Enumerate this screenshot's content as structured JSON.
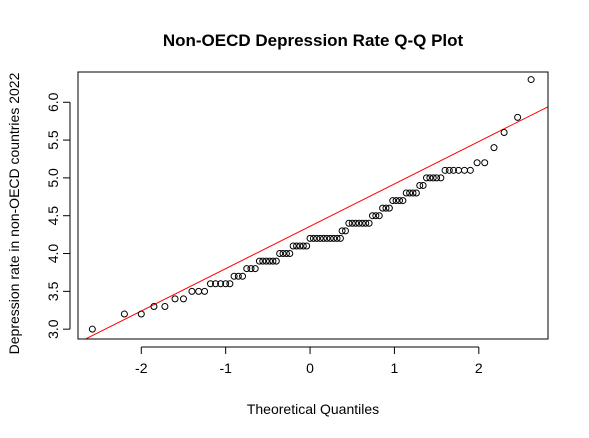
{
  "chart_data": {
    "type": "scatter",
    "subtype": "qq-plot",
    "title": "Non-OECD Depression Rate Q-Q Plot",
    "xlabel": "Theoretical Quantiles",
    "ylabel": "Depression rate in non-OECD countries 2022",
    "xlim": [
      -2.75,
      2.82
    ],
    "ylim": [
      2.87,
      6.4
    ],
    "xticks": [
      -2,
      -1,
      0,
      1,
      2
    ],
    "xtick_labels": [
      "-2",
      "-1",
      "0",
      "1",
      "2"
    ],
    "yticks": [
      3.0,
      3.5,
      4.0,
      4.5,
      5.0,
      5.5,
      6.0
    ],
    "ytick_labels": [
      "3.0",
      "3.5",
      "4.0",
      "4.5",
      "5.0",
      "5.5",
      "6.0"
    ],
    "grid": false,
    "point_color": "#000000",
    "line_color": "#ff0000",
    "reference_line": {
      "x": [
        -2.75,
        2.82
      ],
      "y": [
        2.82,
        5.94
      ]
    },
    "points": [
      [
        -2.58,
        3.0
      ],
      [
        -2.2,
        3.2
      ],
      [
        -2.0,
        3.2
      ],
      [
        -1.85,
        3.3
      ],
      [
        -1.72,
        3.3
      ],
      [
        -1.6,
        3.4
      ],
      [
        -1.5,
        3.4
      ],
      [
        -1.4,
        3.5
      ],
      [
        -1.32,
        3.5
      ],
      [
        -1.25,
        3.5
      ],
      [
        -1.18,
        3.6
      ],
      [
        -1.12,
        3.6
      ],
      [
        -1.06,
        3.6
      ],
      [
        -1.0,
        3.6
      ],
      [
        -0.95,
        3.6
      ],
      [
        -0.9,
        3.7
      ],
      [
        -0.85,
        3.7
      ],
      [
        -0.8,
        3.7
      ],
      [
        -0.75,
        3.8
      ],
      [
        -0.7,
        3.8
      ],
      [
        -0.65,
        3.8
      ],
      [
        -0.6,
        3.9
      ],
      [
        -0.56,
        3.9
      ],
      [
        -0.52,
        3.9
      ],
      [
        -0.48,
        3.9
      ],
      [
        -0.44,
        3.9
      ],
      [
        -0.4,
        3.9
      ],
      [
        -0.36,
        4.0
      ],
      [
        -0.32,
        4.0
      ],
      [
        -0.28,
        4.0
      ],
      [
        -0.24,
        4.0
      ],
      [
        -0.2,
        4.1
      ],
      [
        -0.16,
        4.1
      ],
      [
        -0.12,
        4.1
      ],
      [
        -0.08,
        4.1
      ],
      [
        -0.04,
        4.1
      ],
      [
        0.0,
        4.2
      ],
      [
        0.04,
        4.2
      ],
      [
        0.08,
        4.2
      ],
      [
        0.12,
        4.2
      ],
      [
        0.16,
        4.2
      ],
      [
        0.2,
        4.2
      ],
      [
        0.24,
        4.2
      ],
      [
        0.28,
        4.2
      ],
      [
        0.32,
        4.2
      ],
      [
        0.36,
        4.2
      ],
      [
        0.38,
        4.3
      ],
      [
        0.42,
        4.3
      ],
      [
        0.46,
        4.4
      ],
      [
        0.5,
        4.4
      ],
      [
        0.54,
        4.4
      ],
      [
        0.58,
        4.4
      ],
      [
        0.62,
        4.4
      ],
      [
        0.66,
        4.4
      ],
      [
        0.7,
        4.4
      ],
      [
        0.74,
        4.5
      ],
      [
        0.78,
        4.5
      ],
      [
        0.82,
        4.5
      ],
      [
        0.86,
        4.6
      ],
      [
        0.9,
        4.6
      ],
      [
        0.94,
        4.6
      ],
      [
        0.98,
        4.7
      ],
      [
        1.02,
        4.7
      ],
      [
        1.06,
        4.7
      ],
      [
        1.1,
        4.7
      ],
      [
        1.14,
        4.8
      ],
      [
        1.18,
        4.8
      ],
      [
        1.22,
        4.8
      ],
      [
        1.26,
        4.8
      ],
      [
        1.3,
        4.9
      ],
      [
        1.34,
        4.9
      ],
      [
        1.38,
        5.0
      ],
      [
        1.42,
        5.0
      ],
      [
        1.46,
        5.0
      ],
      [
        1.5,
        5.0
      ],
      [
        1.55,
        5.0
      ],
      [
        1.6,
        5.1
      ],
      [
        1.65,
        5.1
      ],
      [
        1.7,
        5.1
      ],
      [
        1.76,
        5.1
      ],
      [
        1.83,
        5.1
      ],
      [
        1.9,
        5.1
      ],
      [
        1.98,
        5.2
      ],
      [
        2.07,
        5.2
      ],
      [
        2.18,
        5.4
      ],
      [
        2.3,
        5.6
      ],
      [
        2.46,
        5.8
      ],
      [
        2.62,
        6.3
      ]
    ]
  }
}
